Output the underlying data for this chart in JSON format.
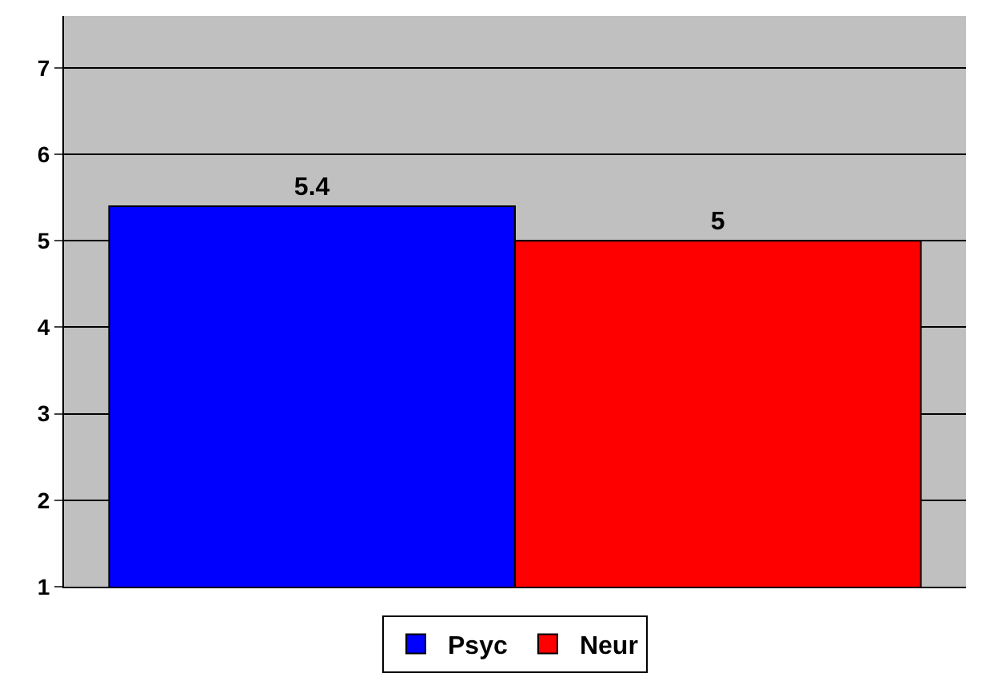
{
  "chart_data": {
    "type": "bar",
    "categories": [
      null
    ],
    "series": [
      {
        "name": "Psyc",
        "color": "#0000ff",
        "values": [
          5.4
        ]
      },
      {
        "name": "Neur",
        "color": "#ff0000",
        "values": [
          5
        ]
      }
    ],
    "ylim": [
      1,
      7.6
    ],
    "yticks": [
      1,
      2,
      3,
      4,
      5,
      6,
      7
    ],
    "grid": "y",
    "legend": "bottom",
    "data_labels": true
  }
}
